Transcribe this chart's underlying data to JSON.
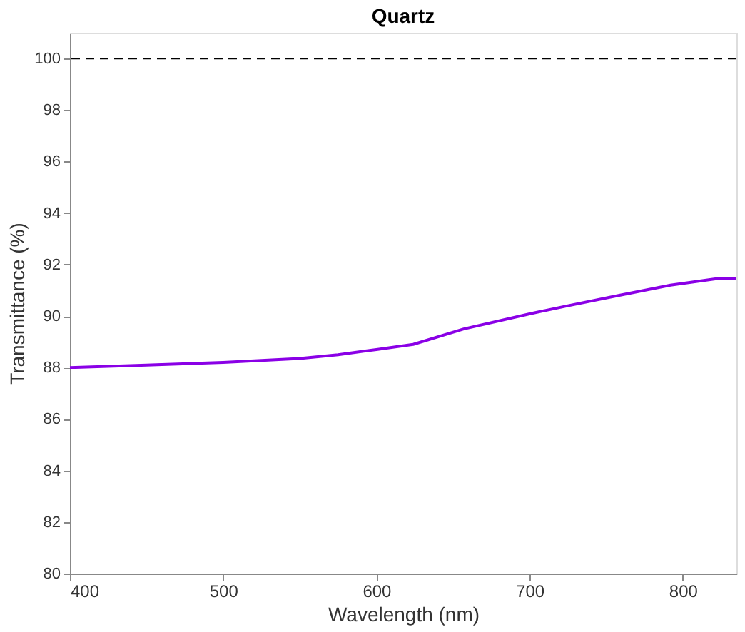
{
  "chart_data": {
    "type": "line",
    "title": "Quartz",
    "xlabel": "Wavelength (nm)",
    "ylabel": "Transmittance (%)",
    "x": [
      400,
      450,
      500,
      550,
      575,
      600,
      624,
      657,
      701,
      725,
      758,
      792,
      822,
      835
    ],
    "series": [
      {
        "color": "#8a00e6",
        "values": [
          88.0,
          88.1,
          88.2,
          88.35,
          88.5,
          88.7,
          88.9,
          89.5,
          90.1,
          90.4,
          90.8,
          91.2,
          91.45,
          91.45
        ]
      }
    ],
    "xlim": [
      400,
      835
    ],
    "xticks": [
      400,
      500,
      600,
      700,
      800
    ],
    "ylim": [
      80,
      101
    ],
    "yticks": [
      80,
      82,
      84,
      86,
      88,
      90,
      92,
      94,
      96,
      98,
      100
    ],
    "ref_lines": [
      {
        "axis": "y",
        "value": 100,
        "color": "#000000",
        "line_style": "dashed"
      }
    ],
    "grid": false,
    "line_style": "solid",
    "marker": "none"
  }
}
